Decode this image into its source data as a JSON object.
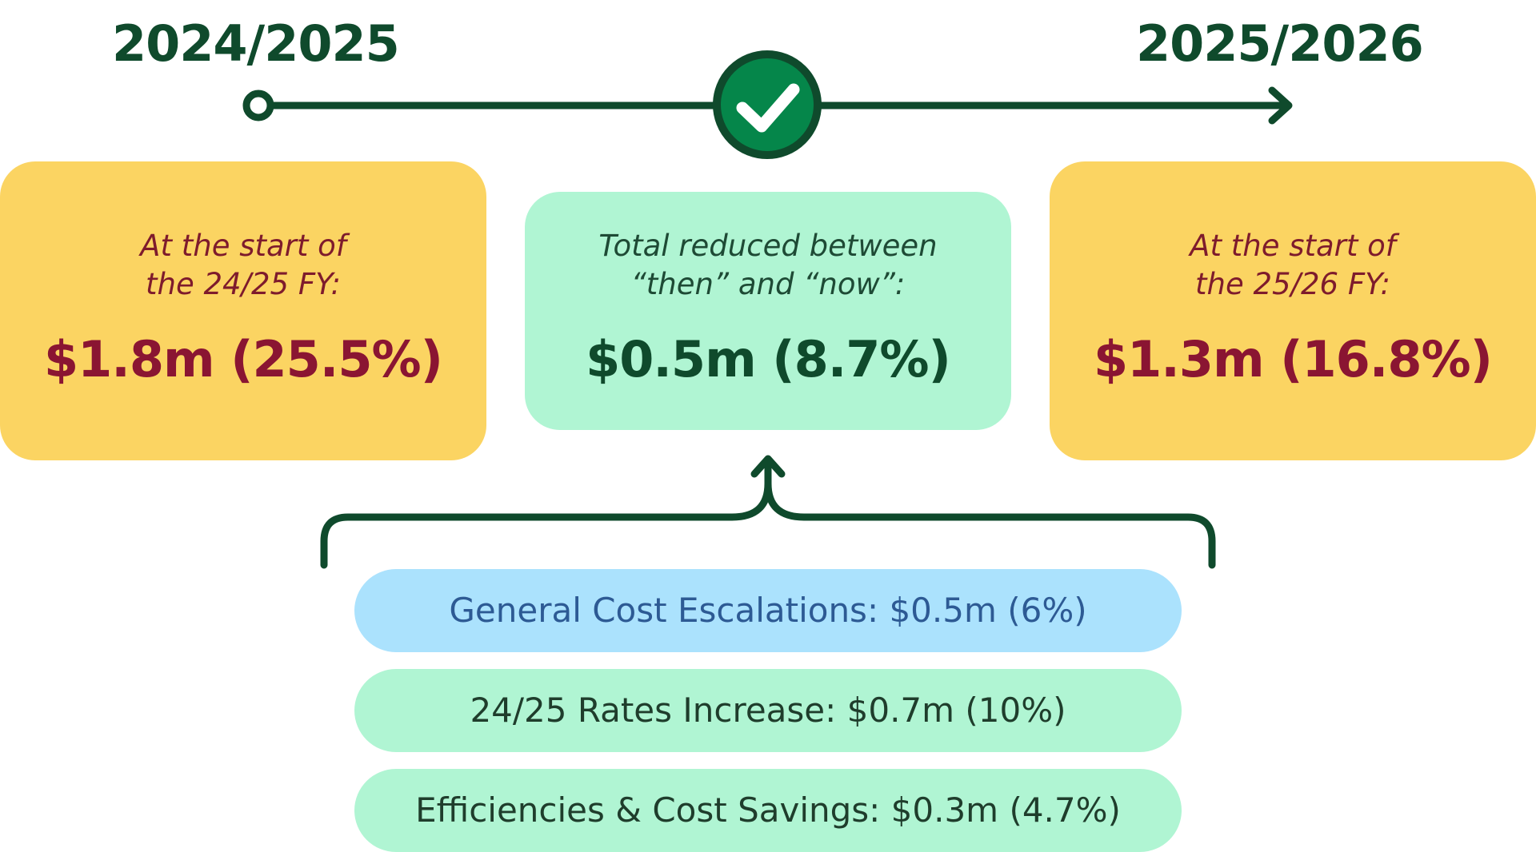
{
  "timeline": {
    "start_year": "2024/2025",
    "end_year": "2025/2026"
  },
  "cards": {
    "start": {
      "label_line1": "At the start of",
      "label_line2": "the 24/25 FY:",
      "value": "$1.8m (25.5%)"
    },
    "total": {
      "label_line1": "Total reduced between",
      "label_line2": "“then” and “now”:",
      "value": "$0.5m (8.7%)"
    },
    "end": {
      "label_line1": "At the start of",
      "label_line2": "the 25/26 FY:",
      "value": "$1.3m (16.8%)"
    }
  },
  "components": [
    {
      "text": "General Cost Escalations: $0.5m (6%)"
    },
    {
      "text": "24/25 Rates Increase: $0.7m (10%)"
    },
    {
      "text": "Efficiencies & Cost Savings: $0.3m (4.7%)"
    }
  ],
  "icons": {
    "milestone": "check-icon",
    "start_marker": "circle-marker-icon",
    "end_marker": "arrow-right-icon"
  },
  "colors": {
    "dark_green": "#0f4a2c",
    "check_green": "#05864a",
    "yellow": "#fbd462",
    "maroon": "#8a1532",
    "mint": "#b0f5d3",
    "light_blue": "#abe2fd",
    "blue_text": "#2d5a94"
  }
}
